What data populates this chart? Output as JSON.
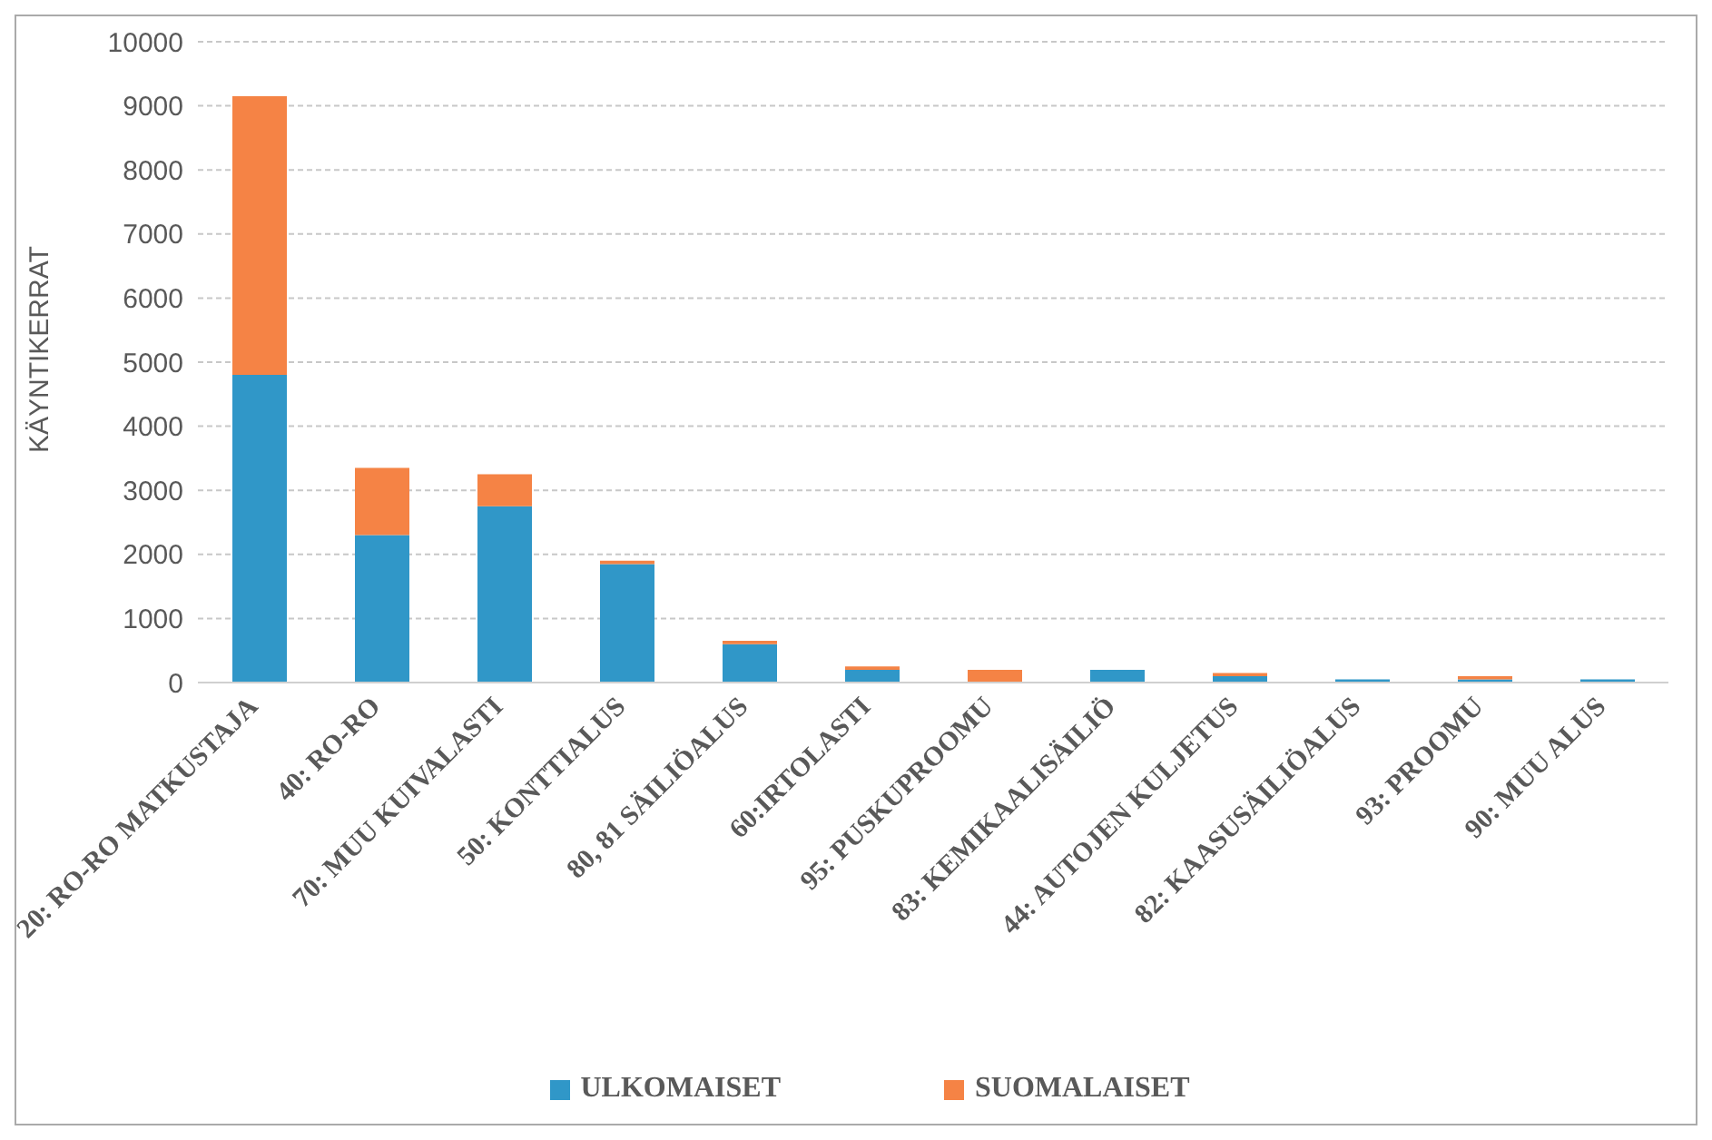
{
  "chart_data": {
    "type": "bar",
    "stacked": true,
    "ylabel": "KÄYNTIKERRAT",
    "categories": [
      "20: RO-RO MATKUSTAJA",
      "40: RO-RO",
      "70: MUU KUIVALASTI",
      "50: KONTTIALUS",
      "80, 81 SÄILIÖALUS",
      "60:IRTOLASTI",
      "95: PUSKUPROOMU",
      "83: KEMIKAALISÄILIÖ",
      "44: AUTOJEN KULJETUS",
      "82: KAASUSÄILIÖALUS",
      "93: PROOMU",
      "90: MUU ALUS"
    ],
    "series": [
      {
        "name": "ULKOMAISET",
        "color": "#3097c8",
        "values": [
          4800,
          2300,
          2750,
          1850,
          600,
          200,
          0,
          200,
          100,
          50,
          50,
          50
        ]
      },
      {
        "name": "SUOMALAISET",
        "color": "#f58345",
        "values": [
          4350,
          1050,
          500,
          50,
          50,
          50,
          200,
          0,
          50,
          0,
          50,
          0
        ]
      }
    ],
    "ylim": [
      0,
      10000
    ],
    "yticks": [
      0,
      1000,
      2000,
      3000,
      4000,
      5000,
      6000,
      7000,
      8000,
      9000,
      10000
    ],
    "grid": "y",
    "legend": "bottom"
  }
}
